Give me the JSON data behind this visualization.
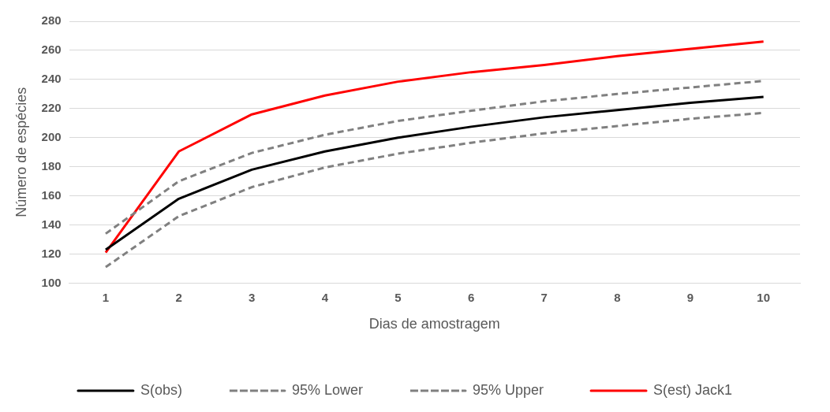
{
  "chart_data": {
    "type": "line",
    "xlabel": "Dias de amostragem",
    "ylabel": "Número de espécies",
    "categories": [
      "1",
      "2",
      "3",
      "4",
      "5",
      "6",
      "7",
      "8",
      "9",
      "10"
    ],
    "series": [
      {
        "name": "S(obs)",
        "color": "#000000",
        "line_style": "solid",
        "values": [
          123,
          158,
          178,
          190.5,
          200,
          207.5,
          214,
          219,
          224,
          228
        ]
      },
      {
        "name": "95% Lower",
        "color": "#808080",
        "line_style": "dashed",
        "values": [
          111,
          146,
          166,
          179.5,
          189,
          196.5,
          203,
          208,
          213,
          217
        ]
      },
      {
        "name": "95% Upper",
        "color": "#808080",
        "line_style": "dashed",
        "values": [
          134,
          170,
          189.5,
          202,
          211.5,
          218.5,
          225,
          230,
          234.5,
          239
        ]
      },
      {
        "name": "S(est) Jack1",
        "color": "#ff0000",
        "line_style": "solid",
        "values": [
          121,
          190.5,
          216,
          229,
          238.5,
          245,
          250,
          256,
          261,
          266
        ]
      }
    ],
    "ylim": [
      100,
      280
    ],
    "yticks": [
      100,
      120,
      140,
      160,
      180,
      200,
      220,
      240,
      260,
      280
    ],
    "grid": "y",
    "legend": "bottom",
    "marker": "none"
  }
}
